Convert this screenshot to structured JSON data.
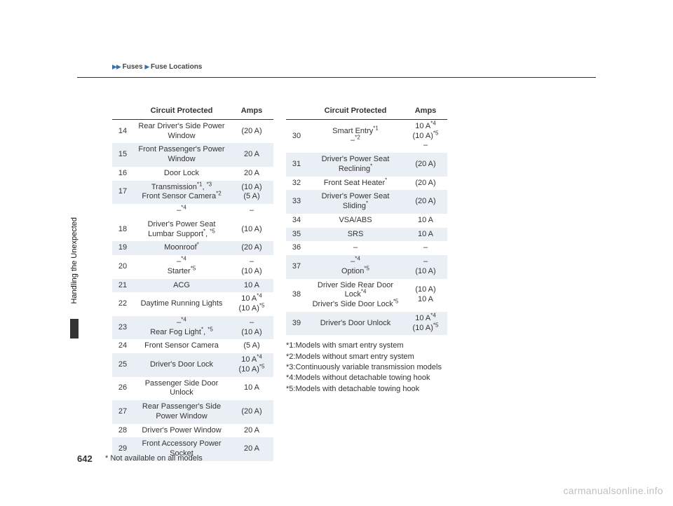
{
  "breadcrumb": {
    "a": "Fuses",
    "b": "Fuse Locations"
  },
  "side_tab": "Handling the Unexpected",
  "page_num": "642",
  "bottom_note": "* Not available on all models",
  "watermark": "carmanualsonline.info",
  "headers": {
    "col1": "Circuit Protected",
    "col2": "Amps",
    "col0": ""
  },
  "t1": [
    {
      "n": "14",
      "c": "Rear Driver's Side Power Window",
      "a": "(20 A)",
      "s": false
    },
    {
      "n": "15",
      "c": "Front Passenger's Power Window",
      "a": "20 A",
      "s": true
    },
    {
      "n": "16",
      "c": "Door Lock",
      "a": "20 A",
      "s": false
    },
    {
      "n": "17",
      "c": "Transmission*1, *3<br>Front Sensor Camera*2",
      "a": "(10 A)<br>(5 A)",
      "s": true
    },
    {
      "n": "",
      "c": "–*4",
      "a": "–",
      "s": false
    },
    {
      "n": "18",
      "c": "Driver's Power Seat Lumbar Support*, *5",
      "a": "(10 A)",
      "s": false
    },
    {
      "n": "19",
      "c": "Moonroof*",
      "a": "(20 A)",
      "s": true
    },
    {
      "n": "20",
      "c": "–*4<br>Starter*5",
      "a": "–<br>(10 A)",
      "s": false
    },
    {
      "n": "21",
      "c": "ACG",
      "a": "10 A",
      "s": true
    },
    {
      "n": "22",
      "c": "Daytime Running Lights",
      "a": "10 A*4<br>(10 A)*5",
      "s": false
    },
    {
      "n": "23",
      "c": "–*4<br>Rear Fog Light*, *5",
      "a": "–<br>(10 A)",
      "s": true
    },
    {
      "n": "24",
      "c": "Front Sensor Camera",
      "a": "(5 A)",
      "s": false
    },
    {
      "n": "25",
      "c": "Driver's Door Lock",
      "a": "10 A*4<br>(10 A)*5",
      "s": true
    },
    {
      "n": "26",
      "c": "Passenger Side Door Unlock",
      "a": "10 A",
      "s": false
    },
    {
      "n": "27",
      "c": "Rear Passenger's Side Power Window",
      "a": "(20 A)",
      "s": true
    },
    {
      "n": "28",
      "c": "Driver's Power Window",
      "a": "20 A",
      "s": false
    },
    {
      "n": "29",
      "c": "Front Accessory Power Socket",
      "a": "20 A",
      "s": true
    }
  ],
  "t2": [
    {
      "n": "30",
      "c": "Smart Entry*1<br>–*2",
      "a": "10 A*4<br>(10 A)*5<br>–",
      "s": false
    },
    {
      "n": "31",
      "c": "Driver's Power Seat Reclining*",
      "a": "(20 A)",
      "s": true
    },
    {
      "n": "32",
      "c": "Front Seat Heater*",
      "a": "(20 A)",
      "s": false
    },
    {
      "n": "33",
      "c": "Driver's Power Seat Sliding*",
      "a": "(20 A)",
      "s": true
    },
    {
      "n": "34",
      "c": "VSA/ABS",
      "a": "10 A",
      "s": false
    },
    {
      "n": "35",
      "c": "SRS",
      "a": "10 A",
      "s": true
    },
    {
      "n": "36",
      "c": "–",
      "a": "–",
      "s": false
    },
    {
      "n": "37",
      "c": "–*4<br>Option*5",
      "a": "–<br>(10 A)",
      "s": true
    },
    {
      "n": "38",
      "c": "Driver Side Rear Door Lock*4<br>Driver's Side Door Lock*5",
      "a": "(10 A)<br>10 A",
      "s": false
    },
    {
      "n": "39",
      "c": "Driver's Door Unlock",
      "a": "10 A*4<br>(10 A)*5",
      "s": true
    }
  ],
  "footnotes": [
    "*1:Models with smart entry system",
    "*2:Models without smart entry system",
    "*3:Continuously variable transmission models",
    "*4:Models without detachable towing hook",
    "*5:Models with detachable towing hook"
  ]
}
